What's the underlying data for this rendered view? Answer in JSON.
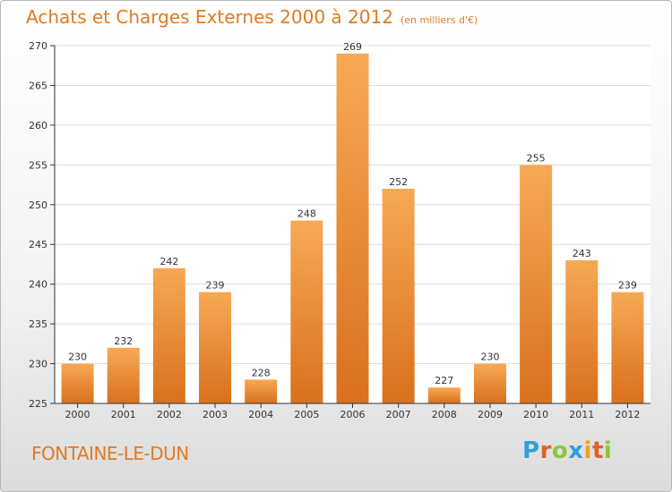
{
  "chart_title": "Achats et Charges Externes 2000 à 2012",
  "chart_subtitle": "(en milliers d'€)",
  "place_name": "FONTAINE-LE-DUN",
  "brand": {
    "letters": [
      "P",
      "r",
      "o",
      "x",
      "i",
      "t",
      "i"
    ],
    "colors": [
      "#2f9fd8",
      "#e35f2a",
      "#8cc63f",
      "#2f9fd8",
      "#f3a11b",
      "#e35f2a",
      "#8cc63f"
    ]
  },
  "colors": {
    "bar_top": "#f6a955",
    "bar_bottom": "#d9701d",
    "accent": "#e07b22",
    "grid": "#dcdcdc",
    "axis": "#333333"
  },
  "chart_data": {
    "type": "bar",
    "categories": [
      "2000",
      "2001",
      "2002",
      "2003",
      "2004",
      "2005",
      "2006",
      "2007",
      "2008",
      "2009",
      "2010",
      "2011",
      "2012"
    ],
    "values": [
      230,
      232,
      242,
      239,
      228,
      248,
      269,
      252,
      227,
      230,
      255,
      243,
      239
    ],
    "data_labels": [
      "230",
      "232",
      "242",
      "239",
      "228",
      "248",
      "269",
      "252",
      "227",
      "230",
      "255",
      "243",
      "239"
    ],
    "ylim": [
      225,
      270
    ],
    "yticks": [
      225,
      230,
      235,
      240,
      245,
      250,
      255,
      260,
      265,
      270
    ],
    "grid": true,
    "legend": "none"
  }
}
